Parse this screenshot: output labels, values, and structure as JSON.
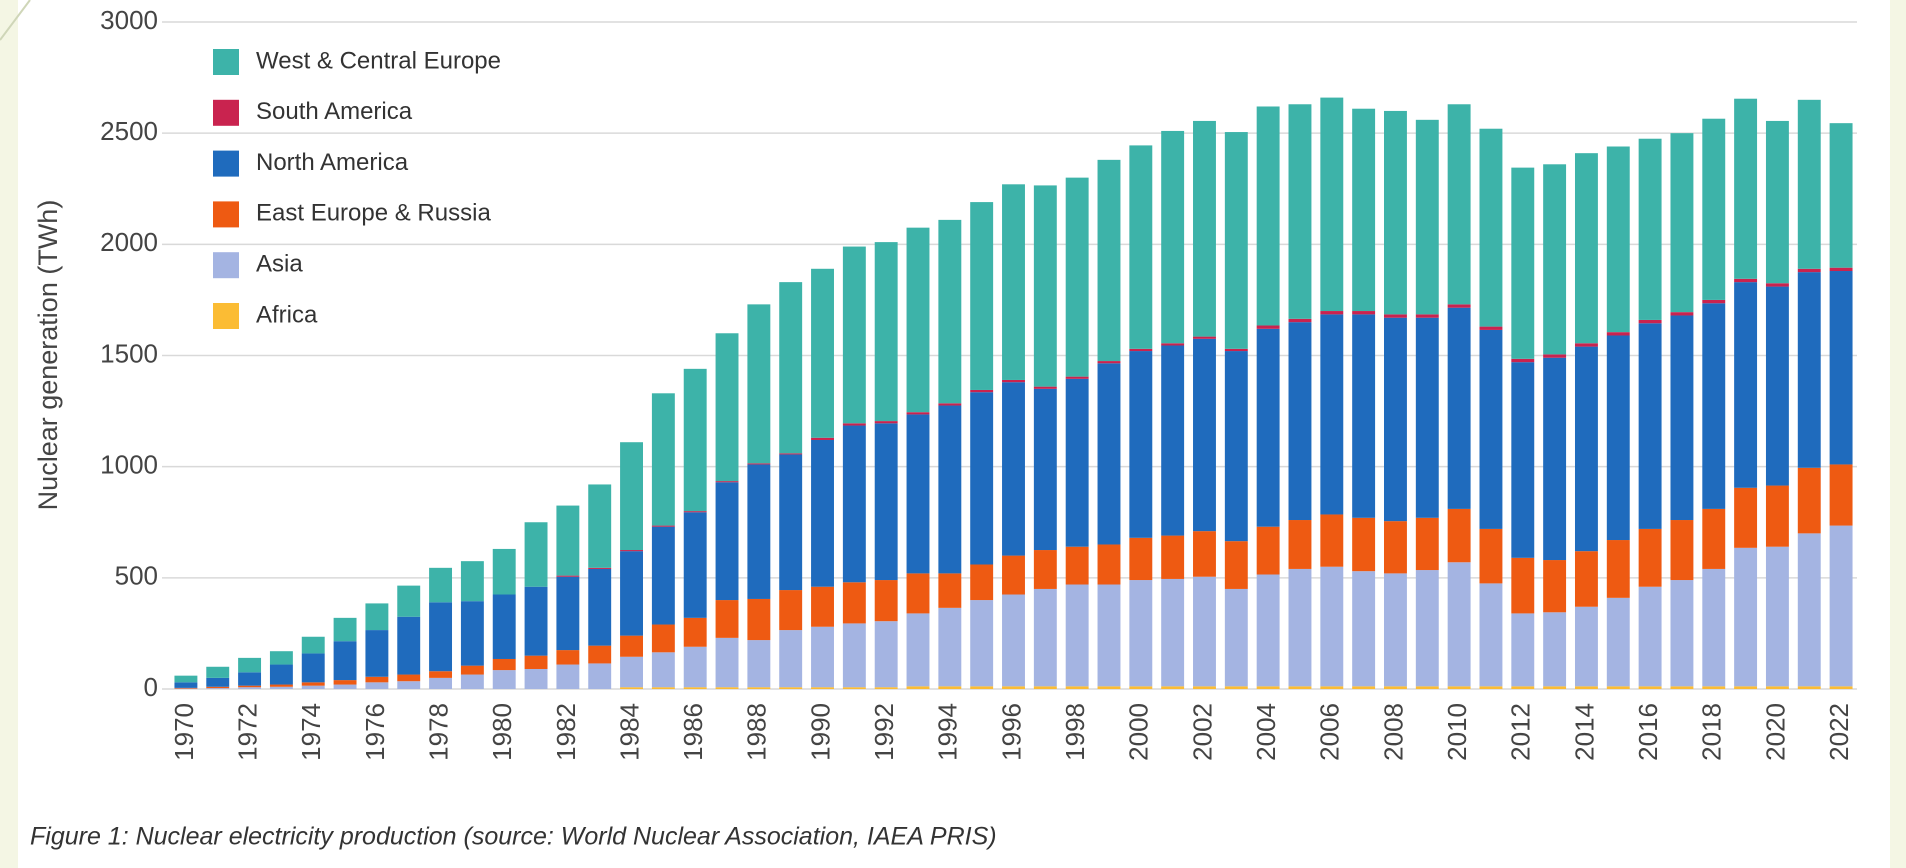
{
  "chart_data": {
    "type": "stacked-bar",
    "y_label": "Nuclear generation (TWh)",
    "caption": "Figure 1: Nuclear electricity production (source: World Nuclear Association, IAEA PRIS)",
    "categories": [
      "1970",
      null,
      "1972",
      null,
      "1974",
      null,
      "1976",
      null,
      "1978",
      null,
      "1980",
      null,
      "1982",
      null,
      "1984",
      null,
      "1986",
      null,
      "1988",
      null,
      "1990",
      null,
      "1992",
      null,
      "1994",
      null,
      "1996",
      null,
      "1998",
      null,
      "2000",
      null,
      "2002",
      null,
      "2004",
      null,
      "2006",
      null,
      "2008",
      null,
      "2010",
      null,
      "2012",
      null,
      "2014",
      null,
      "2016",
      null,
      "2018",
      null,
      "2020",
      null,
      "2022"
    ],
    "series": [
      {
        "name": "Africa",
        "color": "#fbbc34",
        "values": [
          0,
          0,
          0,
          0,
          0,
          0,
          0,
          0,
          0,
          0,
          0,
          0,
          0,
          0,
          8,
          8,
          8,
          8,
          8,
          8,
          8,
          8,
          8,
          12,
          12,
          12,
          12,
          12,
          12,
          12,
          12,
          12,
          12,
          12,
          12,
          12,
          12,
          12,
          12,
          12,
          12,
          12,
          12,
          12,
          12,
          12,
          12,
          12,
          12,
          12,
          12,
          12,
          12
        ]
      },
      {
        "name": "Asia",
        "color": "#a4b4e2",
        "values": [
          2,
          4,
          8,
          10,
          15,
          20,
          30,
          35,
          50,
          65,
          85,
          90,
          110,
          115,
          137,
          157,
          182,
          222,
          212,
          257,
          272,
          287,
          297,
          328,
          353,
          388,
          413,
          438,
          458,
          458,
          478,
          483,
          493,
          438,
          503,
          528,
          538,
          518,
          508,
          523,
          558,
          463,
          328,
          333,
          358,
          398,
          448,
          478,
          528,
          623,
          628,
          688,
          723
        ]
      },
      {
        "name": "East Europe & Russia",
        "color": "#ee5a12",
        "values": [
          3,
          6,
          7,
          10,
          15,
          20,
          25,
          30,
          30,
          40,
          50,
          60,
          65,
          80,
          95,
          125,
          130,
          170,
          185,
          180,
          180,
          185,
          185,
          180,
          155,
          160,
          175,
          175,
          170,
          180,
          190,
          195,
          205,
          215,
          215,
          220,
          235,
          240,
          235,
          235,
          240,
          245,
          250,
          235,
          250,
          260,
          260,
          270,
          270,
          270,
          275,
          295,
          275
        ]
      },
      {
        "name": "North America",
        "color": "#1f6bbd",
        "values": [
          25,
          40,
          60,
          90,
          130,
          175,
          210,
          260,
          310,
          290,
          290,
          310,
          330,
          345,
          380,
          440,
          475,
          530,
          605,
          610,
          660,
          705,
          705,
          715,
          755,
          775,
          780,
          725,
          755,
          815,
          840,
          855,
          865,
          855,
          890,
          890,
          900,
          915,
          915,
          900,
          905,
          895,
          880,
          910,
          920,
          920,
          925,
          920,
          925,
          925,
          895,
          880,
          870
        ]
      },
      {
        "name": "South America",
        "color": "#c9234f",
        "values": [
          0,
          0,
          0,
          0,
          0,
          0,
          0,
          0,
          0,
          0,
          0,
          0,
          5,
          5,
          5,
          5,
          5,
          5,
          5,
          5,
          10,
          10,
          10,
          10,
          10,
          10,
          10,
          10,
          10,
          10,
          10,
          10,
          10,
          10,
          15,
          15,
          15,
          15,
          15,
          15,
          15,
          15,
          15,
          15,
          15,
          15,
          15,
          15,
          15,
          15,
          15,
          15,
          15
        ]
      },
      {
        "name": "West & Central Europe",
        "color": "#3db3a9",
        "values": [
          30,
          50,
          65,
          60,
          75,
          105,
          120,
          140,
          155,
          180,
          205,
          290,
          315,
          375,
          485,
          595,
          640,
          665,
          715,
          770,
          760,
          795,
          805,
          830,
          825,
          845,
          880,
          905,
          895,
          905,
          915,
          955,
          970,
          975,
          985,
          965,
          960,
          910,
          915,
          875,
          900,
          890,
          860,
          855,
          855,
          835,
          815,
          805,
          815,
          810,
          730,
          760,
          650
        ]
      }
    ],
    "ylim": [
      0,
      3000
    ],
    "yticks": [
      0,
      500,
      1000,
      1500,
      2000,
      2500,
      3000
    ],
    "grid": true,
    "legend": "top-left"
  }
}
